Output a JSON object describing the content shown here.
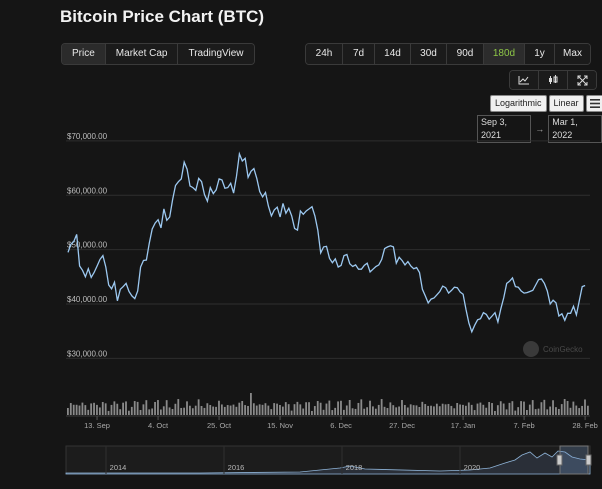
{
  "page_title": "Bitcoin Price Chart (BTC)",
  "view_tabs": [
    {
      "label": "Price",
      "active": true
    },
    {
      "label": "Market Cap",
      "active": false
    },
    {
      "label": "TradingView",
      "active": false
    }
  ],
  "time_ranges": [
    {
      "label": "24h",
      "active": false
    },
    {
      "label": "7d",
      "active": false
    },
    {
      "label": "14d",
      "active": false
    },
    {
      "label": "30d",
      "active": false
    },
    {
      "label": "90d",
      "active": false
    },
    {
      "label": "180d",
      "active": true
    },
    {
      "label": "1y",
      "active": false
    },
    {
      "label": "Max",
      "active": false
    }
  ],
  "chart_type_buttons": [
    "line-chart-icon",
    "candlestick-icon",
    "fullscreen-icon"
  ],
  "scale_buttons": {
    "logarithmic": "Logarithmic",
    "linear": "Linear",
    "menu_icon": "hamburger-menu-icon"
  },
  "date_range": {
    "from": "Sep 3, 2021",
    "arrow": "→",
    "to": "Mar 1, 2022"
  },
  "watermark": "CoinGecko",
  "colors": {
    "line": "#9cc8f0",
    "active_range": "#8dc647",
    "volume": "#8a8a8a",
    "grid": "#2e2e2e"
  },
  "chart_data": {
    "type": "line",
    "title": "Bitcoin Price Chart (BTC)",
    "y_tick_labels": [
      "$70,000.00",
      "$60,000.00",
      "$50,000.00",
      "$40,000.00",
      "$30,000.00"
    ],
    "y_ticks": [
      70000,
      60000,
      50000,
      40000,
      30000
    ],
    "ylim": [
      27500,
      72000
    ],
    "x_tick_labels": [
      "13. Sep",
      "4. Oct",
      "25. Oct",
      "15. Nov",
      "6. Dec",
      "27. Dec",
      "17. Jan",
      "7. Feb",
      "28. Feb"
    ],
    "x_ticks_day": [
      10,
      31,
      52,
      73,
      94,
      115,
      136,
      157,
      178
    ],
    "x_start": "2021-09-03",
    "series": [
      {
        "name": "Price",
        "day": [
          0,
          1,
          2,
          3,
          4,
          5,
          6,
          7,
          8,
          9,
          10,
          11,
          12,
          13,
          14,
          15,
          16,
          17,
          18,
          19,
          20,
          21,
          22,
          23,
          24,
          25,
          26,
          27,
          28,
          29,
          30,
          31,
          32,
          33,
          34,
          35,
          36,
          37,
          38,
          39,
          40,
          41,
          42,
          43,
          44,
          45,
          46,
          47,
          48,
          49,
          50,
          51,
          52,
          53,
          54,
          55,
          56,
          57,
          58,
          59,
          60,
          61,
          62,
          63,
          64,
          65,
          66,
          67,
          68,
          69,
          70,
          71,
          72,
          73,
          74,
          75,
          76,
          77,
          78,
          79,
          80,
          81,
          82,
          83,
          84,
          85,
          86,
          87,
          88,
          89,
          90,
          91,
          92,
          93,
          94,
          95,
          96,
          97,
          98,
          99,
          100,
          101,
          102,
          103,
          104,
          105,
          106,
          107,
          108,
          109,
          110,
          111,
          112,
          113,
          114,
          115,
          116,
          117,
          118,
          119,
          120,
          121,
          122,
          123,
          124,
          125,
          126,
          127,
          128,
          129,
          130,
          131,
          132,
          133,
          134,
          135,
          136,
          137,
          138,
          139,
          140,
          141,
          142,
          143,
          144,
          145,
          146,
          147,
          148,
          149,
          150,
          151,
          152,
          153,
          154,
          155,
          156,
          157,
          158,
          159,
          160,
          161,
          162,
          163,
          164,
          165,
          166,
          167,
          168,
          169,
          170,
          171,
          172,
          173,
          174,
          175,
          176,
          177,
          178,
          179
        ],
        "values": [
          49500,
          51000,
          51500,
          52800,
          47000,
          46200,
          45000,
          46500,
          44900,
          45800,
          47000,
          48200,
          48900,
          46800,
          43500,
          42800,
          44000,
          40600,
          42700,
          43200,
          43800,
          42300,
          41500,
          41000,
          42400,
          46800,
          48000,
          48100,
          51200,
          53800,
          54900,
          55500,
          54000,
          57500,
          55400,
          56000,
          59200,
          61800,
          62500,
          63000,
          66100,
          64800,
          61700,
          61400,
          60900,
          63100,
          62500,
          60100,
          58900,
          61400,
          60300,
          61000,
          63000,
          62800,
          61300,
          61400,
          62200,
          60400,
          63500,
          67600,
          66300,
          66800,
          63300,
          64400,
          64900,
          63100,
          60700,
          59700,
          60500,
          58000,
          56200,
          57300,
          57800,
          56000,
          58500,
          56700,
          57600,
          56200,
          53900,
          53600,
          57100,
          56500,
          57100,
          57500,
          57900,
          56200,
          53600,
          49400,
          50500,
          50600,
          48400,
          47600,
          48300,
          46800,
          47100,
          48900,
          49100,
          47400,
          46900,
          47200,
          46400,
          46400,
          47100,
          47500,
          45900,
          46400,
          46900,
          47200,
          48200,
          50200,
          50500,
          50700,
          50500,
          47500,
          48600,
          48000,
          47200,
          47800,
          47000,
          46500,
          46700,
          45800,
          42700,
          41500,
          40200,
          40900,
          41100,
          41700,
          42300,
          43300,
          43000,
          42000,
          42500,
          43100,
          43000,
          42200,
          41800,
          39000,
          36500,
          34900,
          36100,
          37100,
          37300,
          38400,
          38100,
          37200,
          37800,
          38400,
          36700,
          39100,
          41200,
          43800,
          44200,
          44800,
          43200,
          43100,
          42400,
          42000,
          42100,
          42300,
          42500,
          43500,
          44500,
          44600,
          43800,
          42400,
          40000,
          40700,
          40200,
          37800,
          38200,
          37000,
          38300,
          38300,
          39600,
          38000,
          40600,
          43200,
          43400
        ]
      }
    ],
    "volume_note": "daily trading volume bars (unlabeled)",
    "navigator": {
      "year_labels": [
        "2014",
        "2016",
        "2018",
        "2020"
      ]
    },
    "grid": true,
    "legend": "none"
  }
}
